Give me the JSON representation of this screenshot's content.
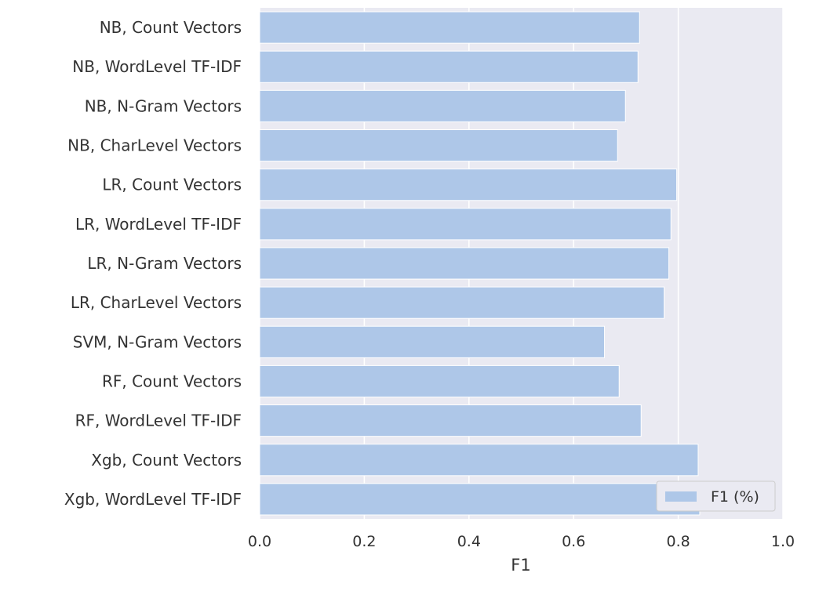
{
  "chart_data": {
    "type": "bar",
    "orientation": "horizontal",
    "categories": [
      "NB, Count Vectors",
      "NB, WordLevel TF-IDF",
      "NB, N-Gram Vectors",
      "NB, CharLevel Vectors",
      "LR, Count Vectors",
      "LR, WordLevel TF-IDF",
      "LR, N-Gram Vectors",
      "LR, CharLevel Vectors",
      "SVM, N-Gram Vectors",
      "RF, Count Vectors",
      "RF, WordLevel TF-IDF",
      "Xgb, Count Vectors",
      "Xgb, WordLevel TF-IDF"
    ],
    "series": [
      {
        "name": "F1 (%)",
        "color": "#aec7e8",
        "values": [
          0.726,
          0.723,
          0.699,
          0.684,
          0.797,
          0.786,
          0.782,
          0.773,
          0.659,
          0.687,
          0.729,
          0.838,
          0.841
        ]
      }
    ],
    "xlabel": "F1",
    "ylabel": "",
    "xlim": [
      0.0,
      1.0
    ],
    "xticks": [
      "0.0",
      "0.2",
      "0.4",
      "0.6",
      "0.8",
      "1.0"
    ],
    "grid": true,
    "legend": {
      "placement": "lower-right",
      "label": "F1 (%)"
    }
  }
}
